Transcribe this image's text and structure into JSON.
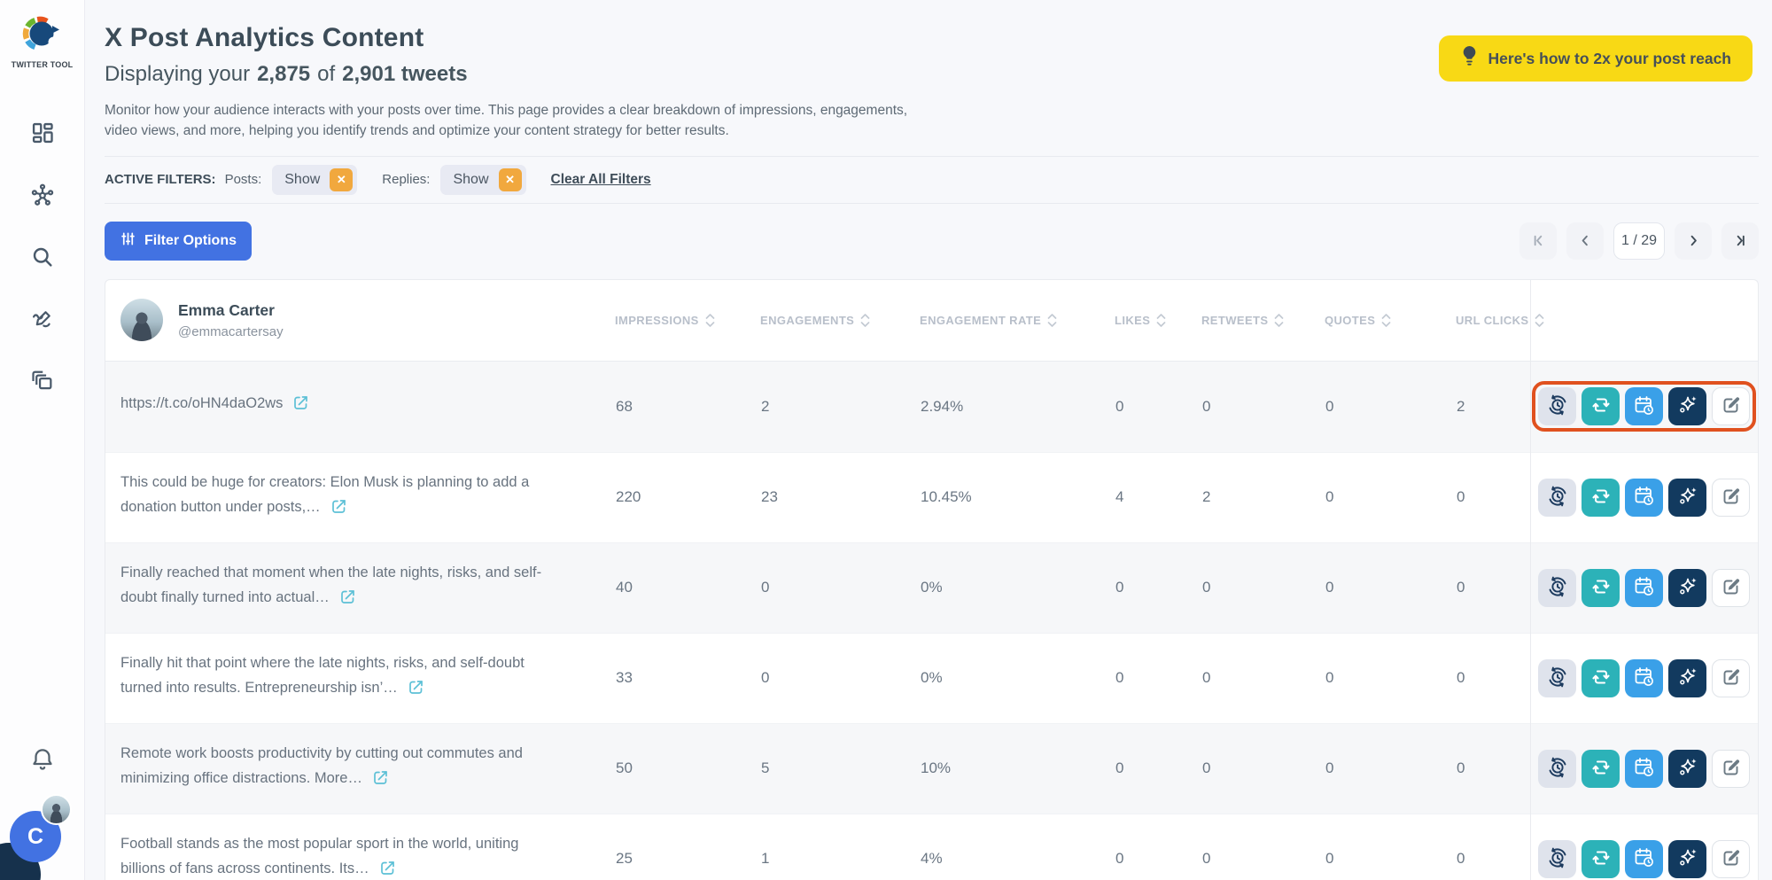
{
  "app": {
    "brand": "TWITTER TOOL",
    "avatar_letter": "C"
  },
  "sidebar": {
    "nav_items": [
      "dashboard",
      "network",
      "search",
      "compose",
      "collections"
    ]
  },
  "banner": {
    "text": "Here's how to 2x your post reach"
  },
  "header": {
    "title": "X Post Analytics Content",
    "subtitle_prefix": "Displaying your",
    "subtitle_shown": "2,875",
    "subtitle_of": "of",
    "subtitle_total": "2,901 tweets",
    "description_line1": "Monitor how your audience interacts with your posts over time. This page provides a clear breakdown of impressions, engagements,",
    "description_line2": "video views, and more, helping you identify trends and optimize your content strategy for better results."
  },
  "filters": {
    "label": "ACTIVE FILTERS:",
    "posts_label": "Posts:",
    "posts_value": "Show",
    "replies_label": "Replies:",
    "replies_value": "Show",
    "clear_label": "Clear All Filters"
  },
  "toolbar": {
    "filter_button_label": "Filter Options",
    "pagination": {
      "page_indicator": "1 / 29"
    }
  },
  "table": {
    "user": {
      "name": "Emma Carter",
      "handle": "@emmacartersay"
    },
    "columns": [
      "IMPRESSIONS",
      "ENGAGEMENTS",
      "ENGAGEMENT RATE",
      "LIKES",
      "RETWEETS",
      "QUOTES",
      "URL CLICKS"
    ],
    "stat_keys": [
      "impressions",
      "engagements",
      "engagement-rate",
      "likes",
      "retweets",
      "quotes",
      "url-clicks"
    ],
    "row_actions": [
      "history",
      "retweet",
      "schedule",
      "ai-enhance",
      "edit"
    ],
    "rows": [
      {
        "text": "https://t.co/oHN4daO2ws",
        "stats": [
          "68",
          "2",
          "2.94%",
          "0",
          "0",
          "0",
          "2"
        ],
        "highlighted": true
      },
      {
        "text": "This could be huge for creators: Elon Musk is planning to add a donation button under posts,…",
        "stats": [
          "220",
          "23",
          "10.45%",
          "4",
          "2",
          "0",
          "0"
        ],
        "highlighted": false
      },
      {
        "text": "Finally reached that moment when the late nights, risks, and self-doubt finally turned into actual…",
        "stats": [
          "40",
          "0",
          "0%",
          "0",
          "0",
          "0",
          "0"
        ],
        "highlighted": false
      },
      {
        "text": "Finally hit that point where the late nights, risks, and self-doubt turned into results. Entrepreneurship isn’…",
        "stats": [
          "33",
          "0",
          "0%",
          "0",
          "0",
          "0",
          "0"
        ],
        "highlighted": false
      },
      {
        "text": "Remote work boosts productivity by cutting out commutes and minimizing office distractions. More…",
        "stats": [
          "50",
          "5",
          "10%",
          "0",
          "0",
          "0",
          "0"
        ],
        "highlighted": false
      },
      {
        "text": "Football stands as the most popular sport in the world, uniting billions of fans across continents. Its…",
        "stats": [
          "25",
          "1",
          "4%",
          "0",
          "0",
          "0",
          "0"
        ],
        "highlighted": false
      }
    ]
  },
  "colors": {
    "accent_blue": "#4272e2",
    "banner_yellow": "#f8d915",
    "highlight_orange": "#e0511f",
    "chip_x_orange": "#f1a83e",
    "teal_action": "#2cb2b8",
    "blue_action": "#3aa0e8",
    "navy_action": "#123a5f",
    "ext_link_teal": "#5cc0d6"
  }
}
